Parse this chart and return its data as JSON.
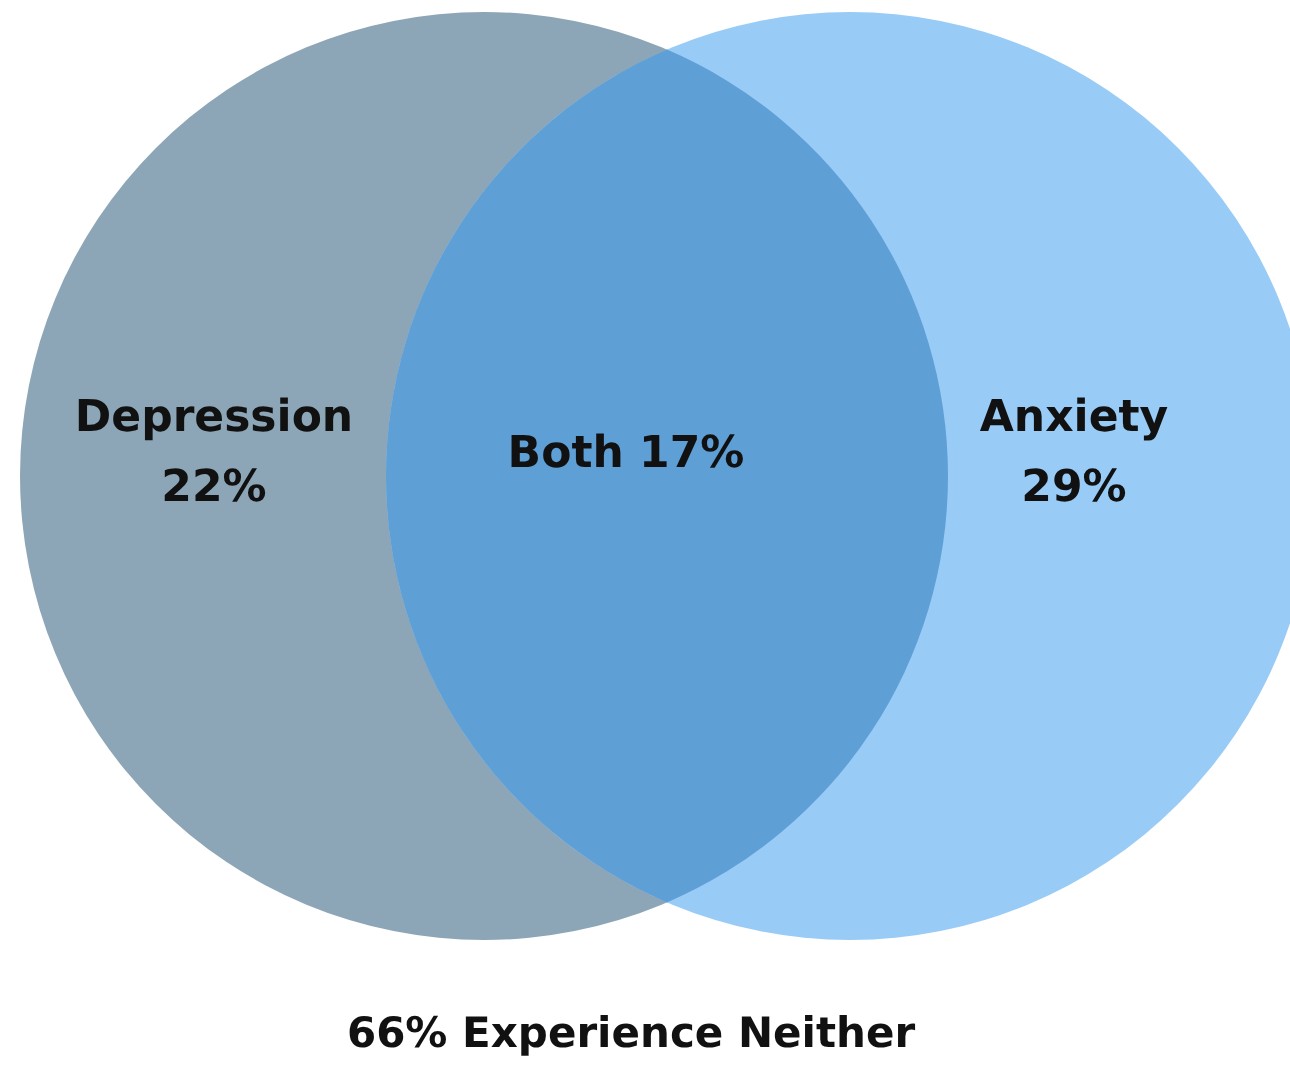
{
  "chart_data": {
    "type": "other",
    "categories": [
      "Depression",
      "Both",
      "Anxiety"
    ],
    "values": [
      22,
      17,
      29
    ],
    "value_labels": [
      "22%",
      "17%",
      "29%"
    ],
    "colors": [
      "#8ca6b7",
      "#5e9fd6",
      "#99cbf7"
    ],
    "annotations": [
      "66% Experience Neither"
    ]
  }
}
